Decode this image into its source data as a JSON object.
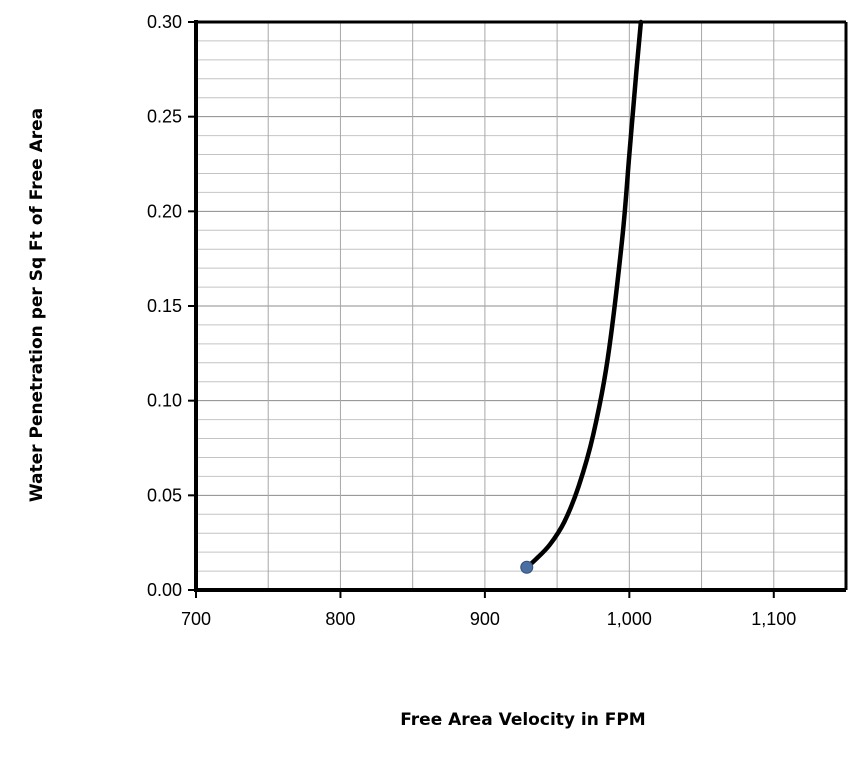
{
  "chart_data": {
    "type": "line",
    "title": "",
    "xlabel": "Free Area Velocity in FPM",
    "ylabel": "Water Penetration per Sq Ft of Free Area",
    "xlim": [
      700,
      1150
    ],
    "ylim": [
      0,
      0.3
    ],
    "x_major_ticks": [
      700,
      800,
      900,
      1000,
      1100
    ],
    "x_tick_labels": [
      "700",
      "800",
      "900",
      "1,000",
      "1,100"
    ],
    "y_major_ticks": [
      0,
      0.05,
      0.1,
      0.15,
      0.2,
      0.25,
      0.3
    ],
    "y_tick_labels": [
      "0.00",
      "0.05",
      "0.10",
      "0.15",
      "0.20",
      "0.25",
      "0.30"
    ],
    "x_minor_step": 50,
    "y_minor_step": 0.01,
    "grid": true,
    "series": [
      {
        "color": "#000000",
        "x": [
          929,
          935,
          945,
          955,
          965,
          975,
          985,
          995,
          1000,
          1005,
          1008
        ],
        "y": [
          0.012,
          0.016,
          0.024,
          0.036,
          0.055,
          0.082,
          0.122,
          0.185,
          0.23,
          0.275,
          0.3
        ]
      }
    ],
    "marker": {
      "x": 929,
      "y": 0.012,
      "color": "#4a6fa0"
    }
  }
}
